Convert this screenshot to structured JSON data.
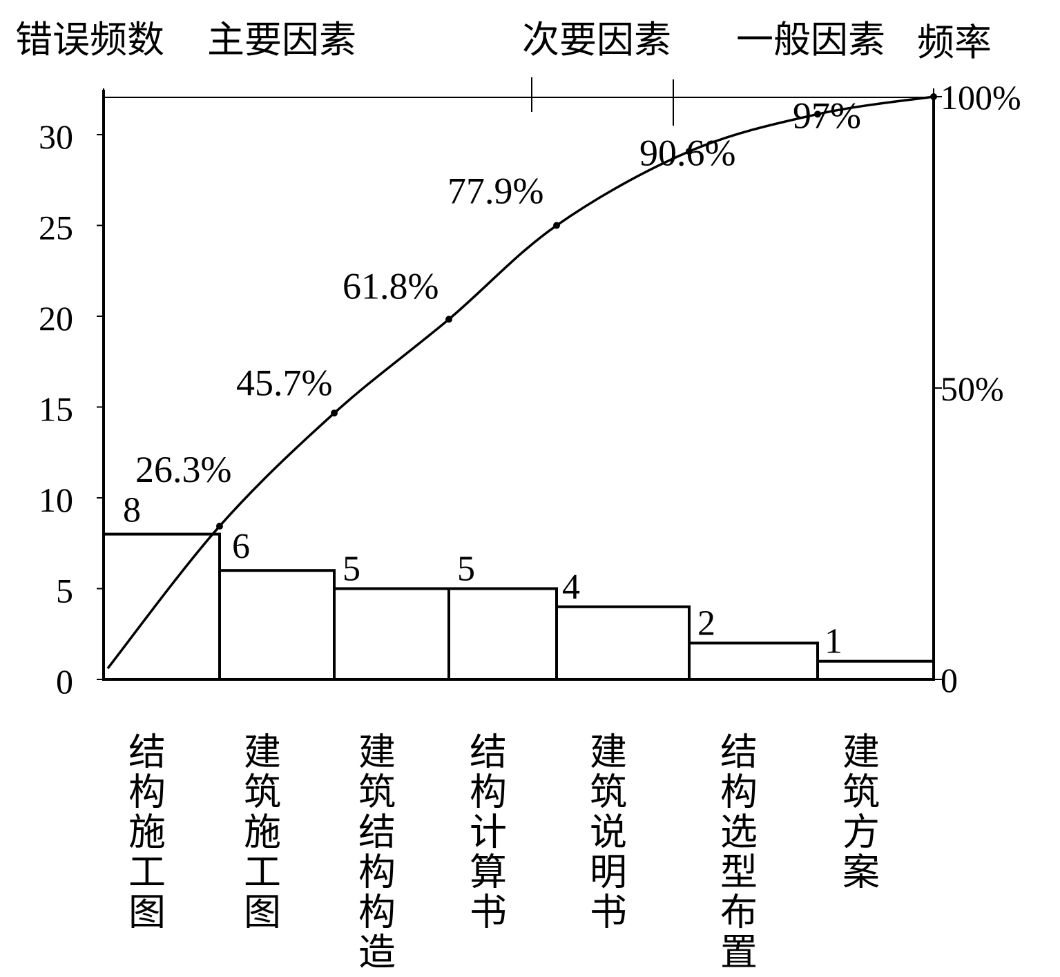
{
  "header": {
    "left_axis_title": "错误频数",
    "right_axis_title": "频率",
    "zones": [
      {
        "label": "主要因素"
      },
      {
        "label": "次要因素"
      },
      {
        "label": "一般因素"
      }
    ]
  },
  "chart_data": {
    "type": "bar",
    "categories": [
      "结构施工图",
      "建筑施工图",
      "建筑结构构造",
      "结构计算书",
      "建筑说明书",
      "结构选型布置",
      "建筑方案"
    ],
    "values": [
      8,
      6,
      5,
      5,
      4,
      2,
      1
    ],
    "value_labels": [
      "8",
      "6",
      "5",
      "5",
      "4",
      "2",
      "1"
    ],
    "cumulative_labels": [
      "26.3%",
      "45.7%",
      "61.8%",
      "77.9%",
      "90.6%",
      "97%",
      "100%"
    ],
    "cumulative_percent": [
      26.3,
      45.7,
      61.8,
      77.9,
      90.6,
      97,
      100
    ],
    "y_left_ticks": [
      "0",
      "5",
      "10",
      "15",
      "20",
      "25",
      "30"
    ],
    "y_left_tick_values": [
      0,
      5,
      10,
      15,
      20,
      25,
      30
    ],
    "y_right_ticks": [
      "0",
      "50%",
      "100%"
    ],
    "y_right_tick_values": [
      0,
      50,
      100
    ],
    "ylim": [
      0,
      31
    ],
    "grid": false
  }
}
